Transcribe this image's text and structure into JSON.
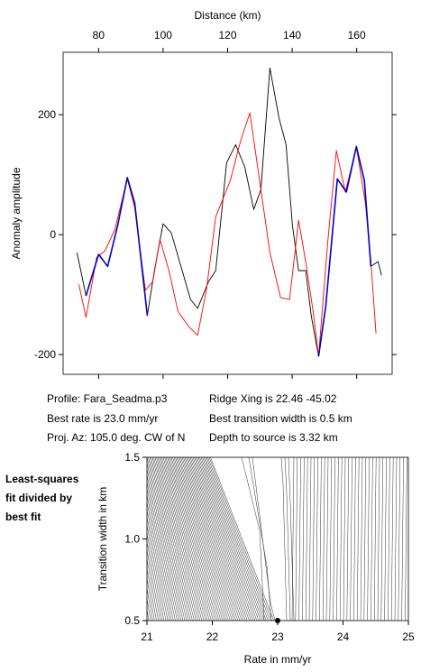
{
  "chart_data": [
    {
      "type": "line",
      "x_label": "Distance (km)",
      "y_label": "Anomaly amplitude",
      "xlim": [
        69,
        171
      ],
      "ylim": [
        -233,
        304
      ],
      "xticks": [
        80,
        100,
        120,
        140,
        160
      ],
      "yticks": [
        -200,
        0,
        200
      ],
      "series": [
        {
          "color": "#000000",
          "x": [
            73.3,
            76.1,
            80,
            82.8,
            85.9,
            88.9,
            91.2,
            95.1,
            97.3,
            100,
            102.5,
            105.1,
            108.5,
            110.7,
            114.1,
            116.3,
            119.7,
            122.5,
            125.3,
            128.1,
            130.3,
            133.1,
            135.9,
            138.1,
            140.1,
            142,
            144.2,
            145.9,
            148.2,
            150.4,
            154,
            156.8,
            159.9,
            162.4,
            164.4,
            166.6,
            167.7
          ],
          "values": [
            -30,
            -102,
            -33,
            -53,
            15,
            95,
            53,
            -135,
            -60,
            18,
            3,
            -45,
            -108,
            -123,
            -78,
            -60,
            120,
            150,
            113,
            42,
            75,
            278,
            195,
            150,
            15,
            -60,
            -60,
            -135,
            -203,
            -120,
            93,
            71,
            147,
            90,
            -53,
            -45,
            -68
          ]
        },
        {
          "color": "#ff0000",
          "x": [
            73.9,
            76.1,
            79.4,
            82,
            85,
            88.9,
            91.2,
            94.5,
            96.8,
            99,
            101.8,
            104.6,
            107.9,
            110.7,
            113.5,
            116.3,
            120.8,
            124.1,
            126.9,
            130.3,
            133.1,
            136.4,
            139.2,
            142,
            144.2,
            146.5,
            148.2,
            151,
            153.7,
            156.5,
            159.9,
            162.7,
            164.4,
            166
          ],
          "values": [
            -83,
            -138,
            -38,
            -27,
            8,
            93,
            45,
            -93,
            -78,
            -8,
            -60,
            -128,
            -153,
            -168,
            -90,
            30,
            90,
            158,
            203,
            75,
            -30,
            -105,
            -108,
            24,
            -45,
            -128,
            -203,
            -15,
            140,
            71,
            146,
            53,
            -45,
            -165
          ]
        },
        {
          "color": "#0000cc",
          "x": [
            76.1,
            80,
            82.8,
            85.9,
            88.9,
            91.2,
            95.1,
            120,
            148.2,
            150.4,
            154,
            156.8,
            159.9,
            162.4,
            164.4
          ],
          "values": [
            -102,
            -33,
            -53,
            15,
            95,
            53,
            -135,
            null,
            -203,
            -120,
            93,
            71,
            147,
            90,
            -53
          ]
        }
      ],
      "annotations": [
        "Profile: Fara_Seadma.p3",
        "Ridge Xing is 22.46 -45.02",
        "Best rate is 23.0 mm/yr",
        "Best transition width is 0.5 km",
        "Proj. Az: 105.0 deg. CW of N",
        "Depth to source is   3.32 km"
      ]
    },
    {
      "type": "contour",
      "title": [
        "Least-squares",
        "fit divided by",
        "best fit"
      ],
      "x_label": "Rate in mm/yr",
      "y_label": "Transition width in km",
      "xlim": [
        21,
        25
      ],
      "ylim": [
        0.5,
        1.5
      ],
      "xticks": [
        21,
        22,
        23,
        24,
        25
      ],
      "yticks": [
        {
          "value": 0.5,
          "label": "0.5"
        },
        {
          "value": 1,
          "label": "1.0"
        },
        {
          "value": 1.5,
          "label": "1.5"
        }
      ],
      "x": [
        23.0
      ],
      "values": [
        0.5
      ]
    }
  ]
}
